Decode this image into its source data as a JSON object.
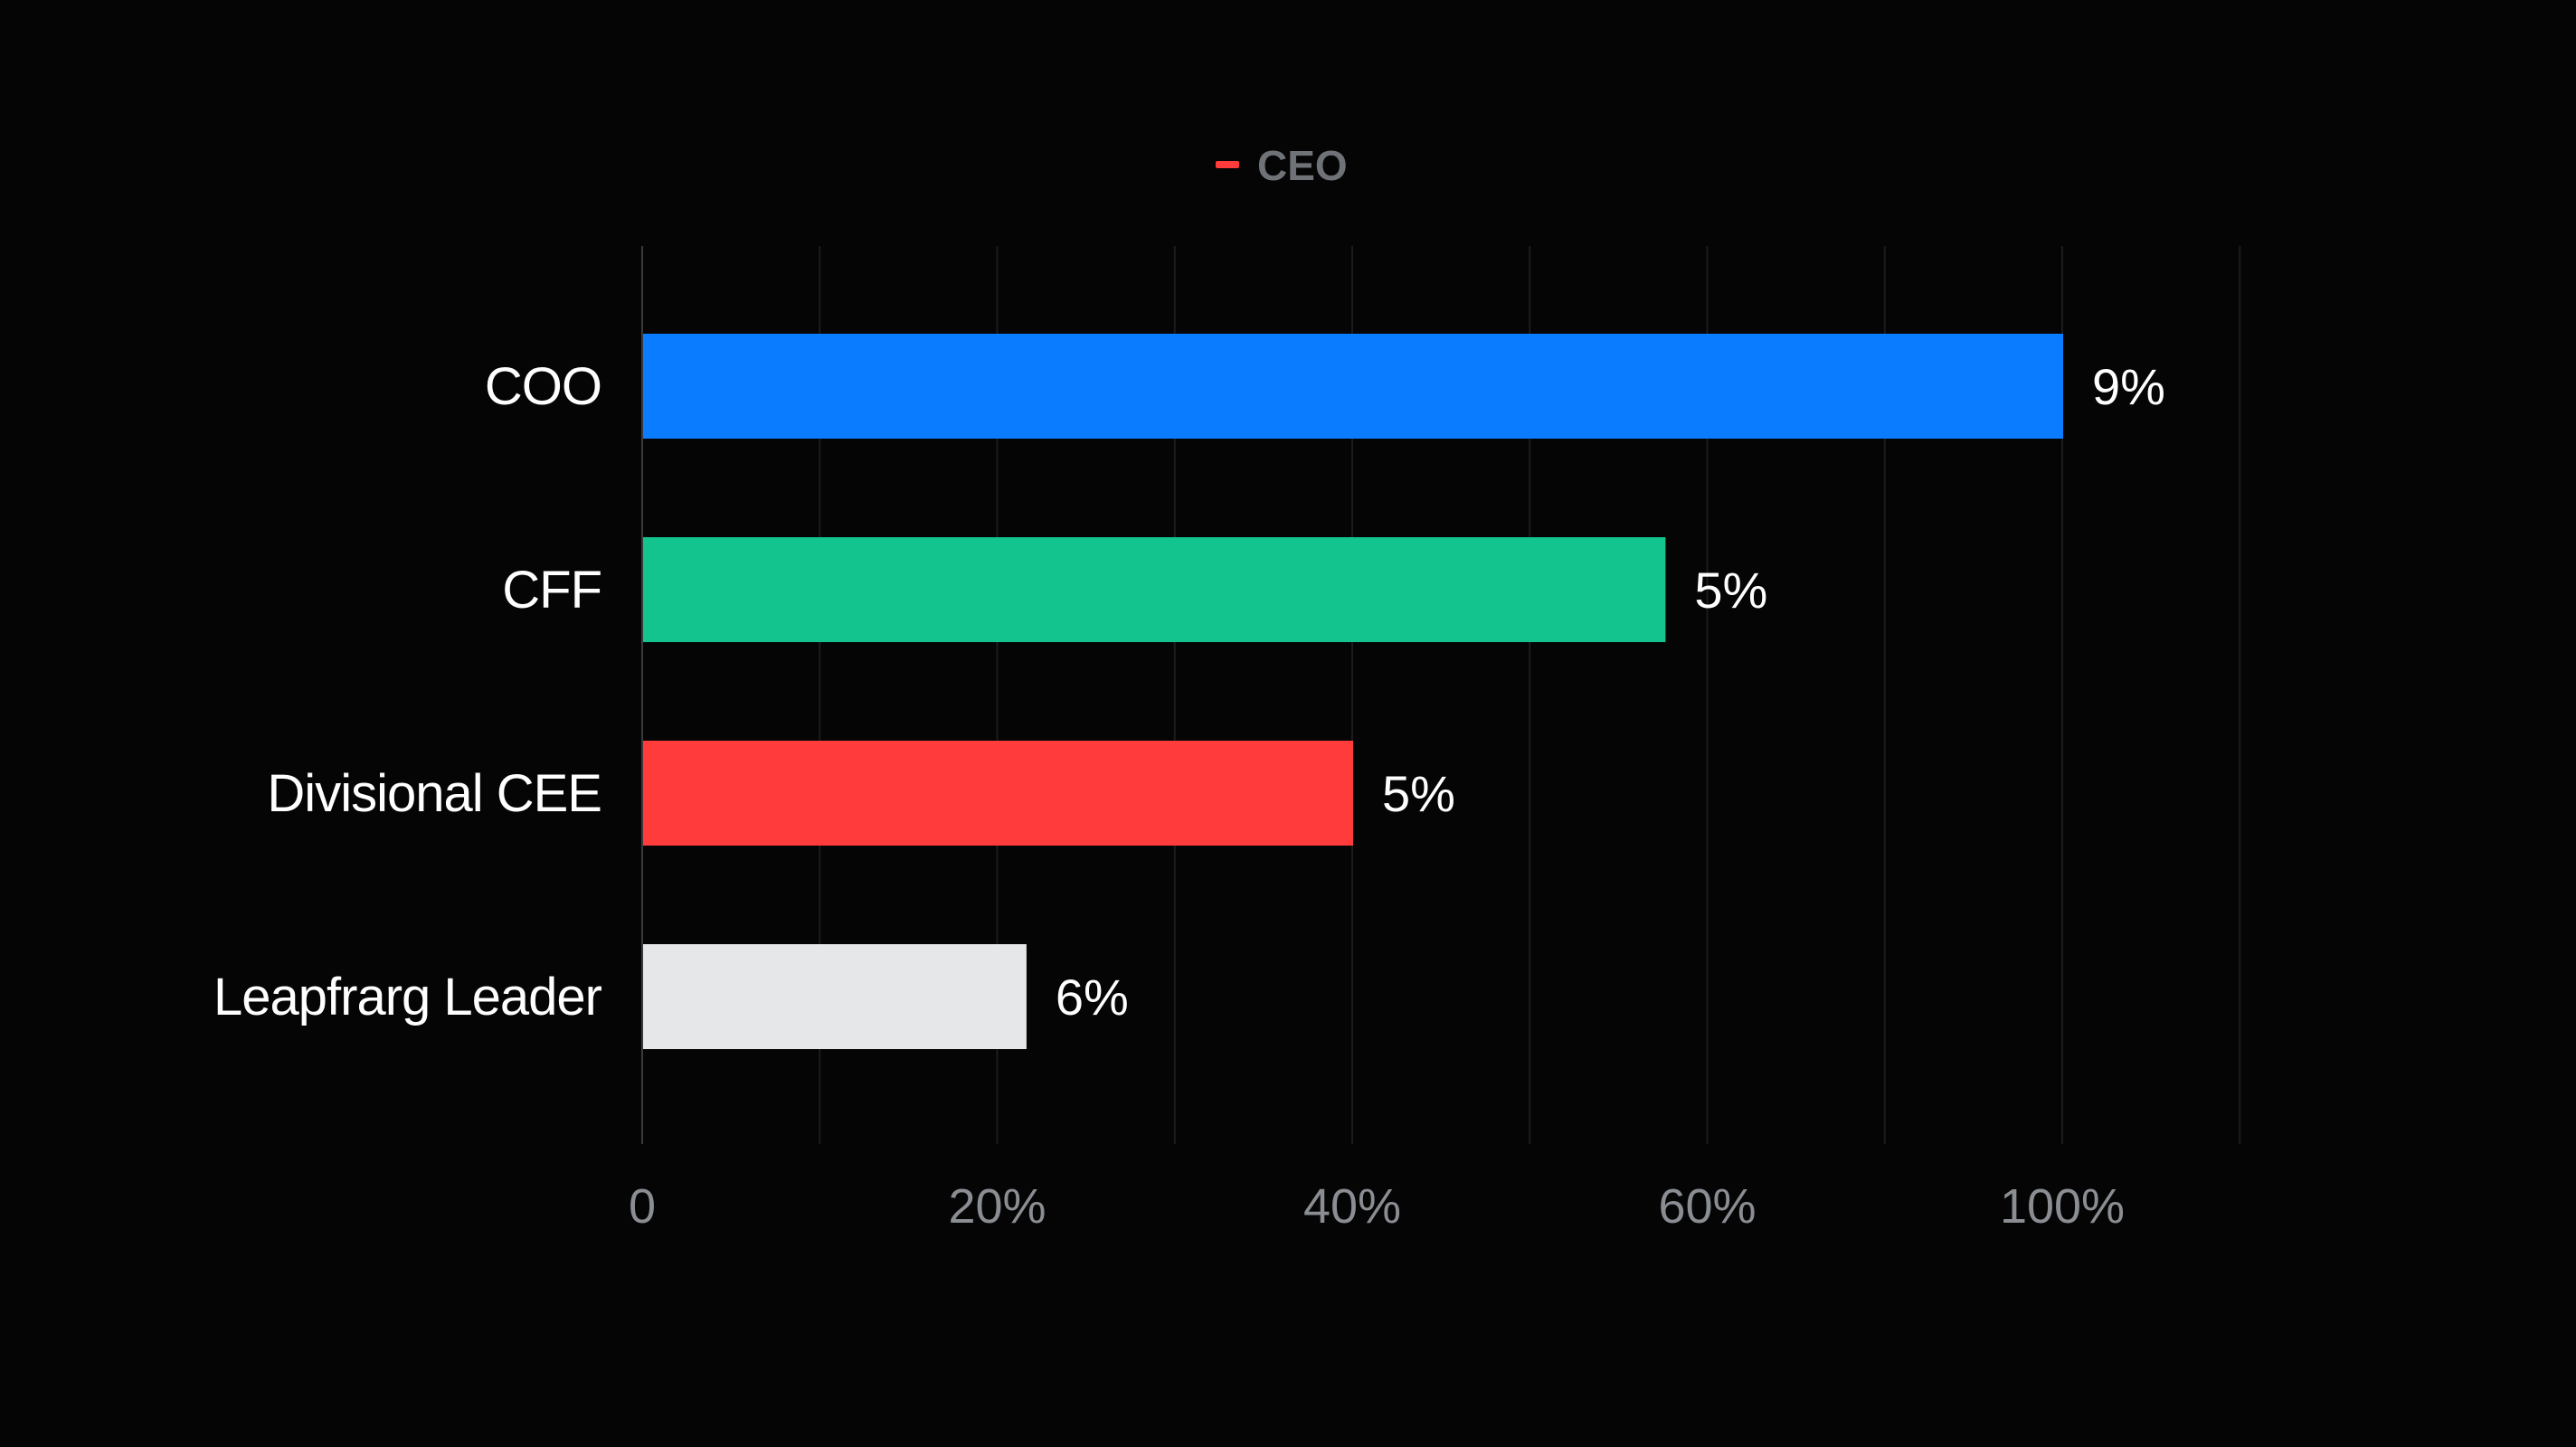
{
  "chart_data": {
    "type": "bar",
    "orientation": "horizontal",
    "legend": {
      "placement": "top-center",
      "entries": [
        {
          "name": "CEO",
          "color": "#ff3b3b"
        }
      ]
    },
    "categories": [
      "COO",
      "CFF",
      "Divisional CEE",
      "Leapfrarg Leader"
    ],
    "values": [
      100,
      72,
      50,
      27
    ],
    "data_labels": [
      "9%",
      "5%",
      "5%",
      "6%"
    ],
    "colors": [
      "#0a7cff",
      "#13c48f",
      "#ff3b3b",
      "#e5e7e9"
    ],
    "x_ticks": [
      {
        "value": 0,
        "label": "0"
      },
      {
        "value": 25,
        "label": "20%"
      },
      {
        "value": 50,
        "label": "40%"
      },
      {
        "value": 75,
        "label": "60%"
      },
      {
        "value": 100,
        "label": "100%"
      }
    ],
    "xlim": [
      0,
      112.5
    ],
    "grid_step": 12.5,
    "grid": true
  }
}
